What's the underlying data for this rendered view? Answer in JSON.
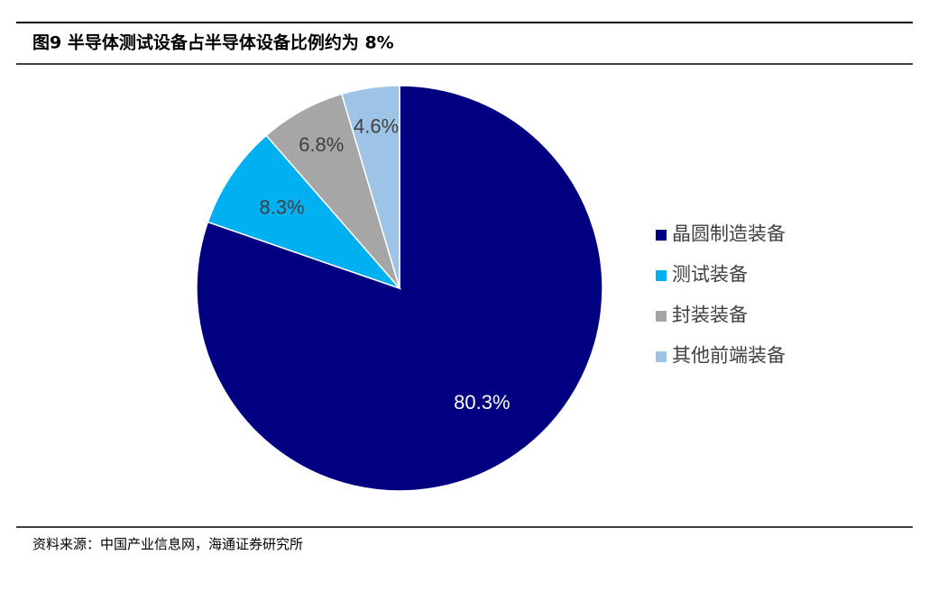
{
  "chart_data": {
    "type": "pie",
    "title": "图9  半导体测试设备占半导体设备比例约为 8%",
    "categories": [
      "晶圆制造装备",
      "测试装备",
      "封装装备",
      "其他前端装备"
    ],
    "values": [
      80.3,
      8.3,
      6.8,
      4.6
    ],
    "value_labels": [
      "80.3%",
      "8.3%",
      "6.8%",
      "4.6%"
    ],
    "colors": [
      "#000080",
      "#00b0f0",
      "#a6a6a6",
      "#9dc3e6"
    ],
    "legend": "right",
    "source": "资料来源：中国产业信息网，海通证券研究所"
  }
}
